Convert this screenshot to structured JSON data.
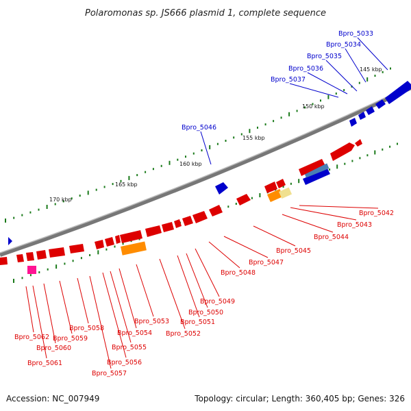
{
  "title": "Polaromonas sp. JS666 plasmid 1, complete sequence",
  "footer": {
    "accession": "Accession: NC_007949",
    "summary": "Topology: circular; Length: 360,405 bp; Genes: 326"
  },
  "colors": {
    "forward": "#0000cc",
    "reverse": "#dd0000",
    "backbone": "#777777",
    "ticks": "#1a7a1a",
    "orange": "#ff8c00",
    "pink": "#ff1493",
    "steelblue": "#4a7fb5",
    "khaki": "#f0e090"
  },
  "scale": {
    "ticks": [
      {
        "kbp": 145,
        "label": "145 kbp"
      },
      {
        "kbp": 150,
        "label": "150 kbp"
      },
      {
        "kbp": 155,
        "label": "155 kbp"
      },
      {
        "kbp": 160,
        "label": "160 kbp"
      },
      {
        "kbp": 165,
        "label": "165 kbp"
      },
      {
        "kbp": 170,
        "label": "170 kbp"
      }
    ]
  },
  "genes": [
    {
      "id": "Bpro_5033",
      "label": "Bpro_5033",
      "strand": "forward"
    },
    {
      "id": "Bpro_5034",
      "label": "Bpro_5034",
      "strand": "forward"
    },
    {
      "id": "Bpro_5035",
      "label": "Bpro_5035",
      "strand": "forward"
    },
    {
      "id": "Bpro_5036",
      "label": "Bpro_5036",
      "strand": "forward"
    },
    {
      "id": "Bpro_5037",
      "label": "Bpro_5037",
      "strand": "forward"
    },
    {
      "id": "Bpro_5046",
      "label": "Bpro_5046",
      "strand": "forward"
    },
    {
      "id": "Bpro_5042",
      "label": "Bpro_5042",
      "strand": "reverse"
    },
    {
      "id": "Bpro_5043",
      "label": "Bpro_5043",
      "strand": "reverse"
    },
    {
      "id": "Bpro_5044",
      "label": "Bpro_5044",
      "strand": "reverse"
    },
    {
      "id": "Bpro_5045",
      "label": "Bpro_5045",
      "strand": "reverse"
    },
    {
      "id": "Bpro_5047",
      "label": "Bpro_5047",
      "strand": "reverse"
    },
    {
      "id": "Bpro_5048",
      "label": "Bpro_5048",
      "strand": "reverse"
    },
    {
      "id": "Bpro_5049",
      "label": "Bpro_5049",
      "strand": "reverse"
    },
    {
      "id": "Bpro_5050",
      "label": "Bpro_5050",
      "strand": "reverse"
    },
    {
      "id": "Bpro_5051",
      "label": "Bpro_5051",
      "strand": "reverse"
    },
    {
      "id": "Bpro_5052",
      "label": "Bpro_5052",
      "strand": "reverse"
    },
    {
      "id": "Bpro_5053",
      "label": "Bpro_5053",
      "strand": "reverse"
    },
    {
      "id": "Bpro_5054",
      "label": "Bpro_5054",
      "strand": "reverse"
    },
    {
      "id": "Bpro_5055",
      "label": "Bpro_5055",
      "strand": "reverse"
    },
    {
      "id": "Bpro_5056",
      "label": "Bpro_5056",
      "strand": "reverse"
    },
    {
      "id": "Bpro_5057",
      "label": "Bpro_5057",
      "strand": "reverse"
    },
    {
      "id": "Bpro_5058",
      "label": "Bpro_5058",
      "strand": "reverse"
    },
    {
      "id": "Bpro_5059",
      "label": "Bpro_5059",
      "strand": "reverse"
    },
    {
      "id": "Bpro_5060",
      "label": "Bpro_5060",
      "strand": "reverse"
    },
    {
      "id": "Bpro_5061",
      "label": "Bpro_5061",
      "strand": "reverse"
    },
    {
      "id": "Bpro_5062",
      "label": "Bpro_5062",
      "strand": "reverse"
    }
  ]
}
